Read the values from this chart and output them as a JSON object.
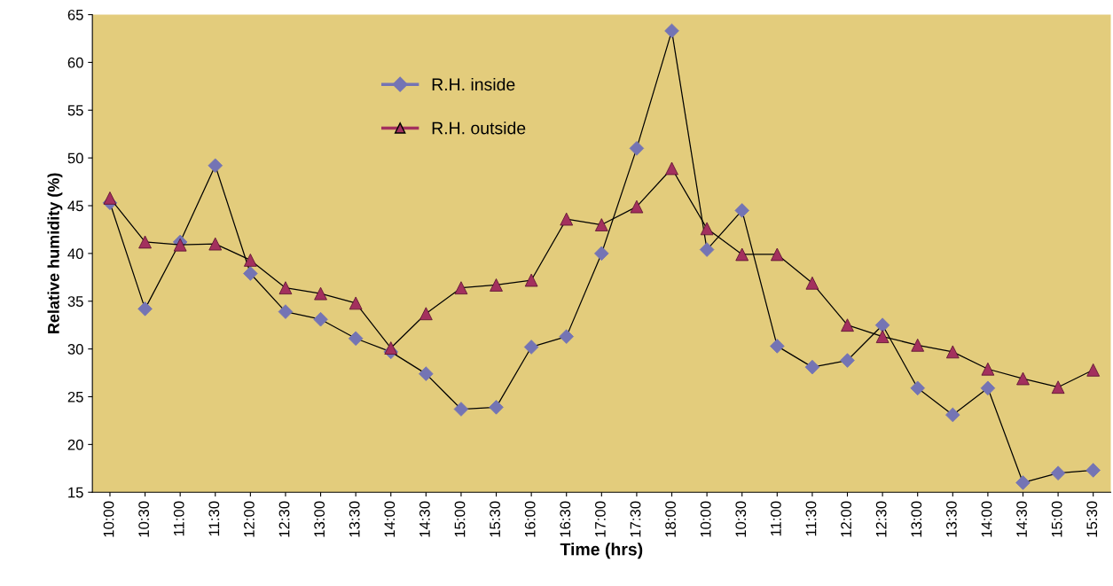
{
  "chart_data": {
    "type": "line",
    "xlabel": "Time (hrs)",
    "ylabel": "Relative humidity (%)",
    "categories": [
      "10:00",
      "10:30",
      "11:00",
      "11:30",
      "12:00",
      "12:30",
      "13:00",
      "13:30",
      "14:00",
      "14:30",
      "15:00",
      "15:30",
      "16:00",
      "16:30",
      "17:00",
      "17:30",
      "18:00",
      "10:00",
      "10:30",
      "11:00",
      "11:30",
      "12:00",
      "12:30",
      "13:00",
      "13:30",
      "14:00",
      "14:30",
      "15:00",
      "15:30"
    ],
    "series": [
      {
        "name": "R.H. inside",
        "color": "#7474b4",
        "marker": "diamond",
        "values": [
          45.3,
          34.2,
          41.2,
          49.2,
          37.9,
          33.9,
          33.1,
          31.1,
          29.7,
          27.4,
          23.7,
          23.9,
          30.2,
          31.3,
          40.0,
          51.0,
          63.3,
          40.4,
          44.5,
          30.3,
          28.1,
          28.8,
          32.5,
          25.9,
          23.1,
          25.9,
          16.0,
          17.0,
          17.3
        ]
      },
      {
        "name": "R.H. outside",
        "color": "#a3305e",
        "marker": "triangle",
        "values": [
          45.8,
          41.2,
          40.9,
          41.0,
          39.3,
          36.4,
          35.8,
          34.8,
          30.1,
          33.7,
          36.4,
          36.7,
          37.2,
          43.6,
          43.0,
          44.9,
          48.9,
          42.6,
          39.9,
          39.9,
          36.9,
          32.5,
          31.3,
          30.4,
          29.7,
          27.9,
          26.9,
          26.0,
          27.8
        ]
      }
    ],
    "ylim": [
      15,
      65
    ],
    "yticks": [
      15,
      20,
      25,
      30,
      35,
      40,
      45,
      50,
      55,
      60,
      65
    ],
    "grid": false,
    "legend": "top left"
  }
}
